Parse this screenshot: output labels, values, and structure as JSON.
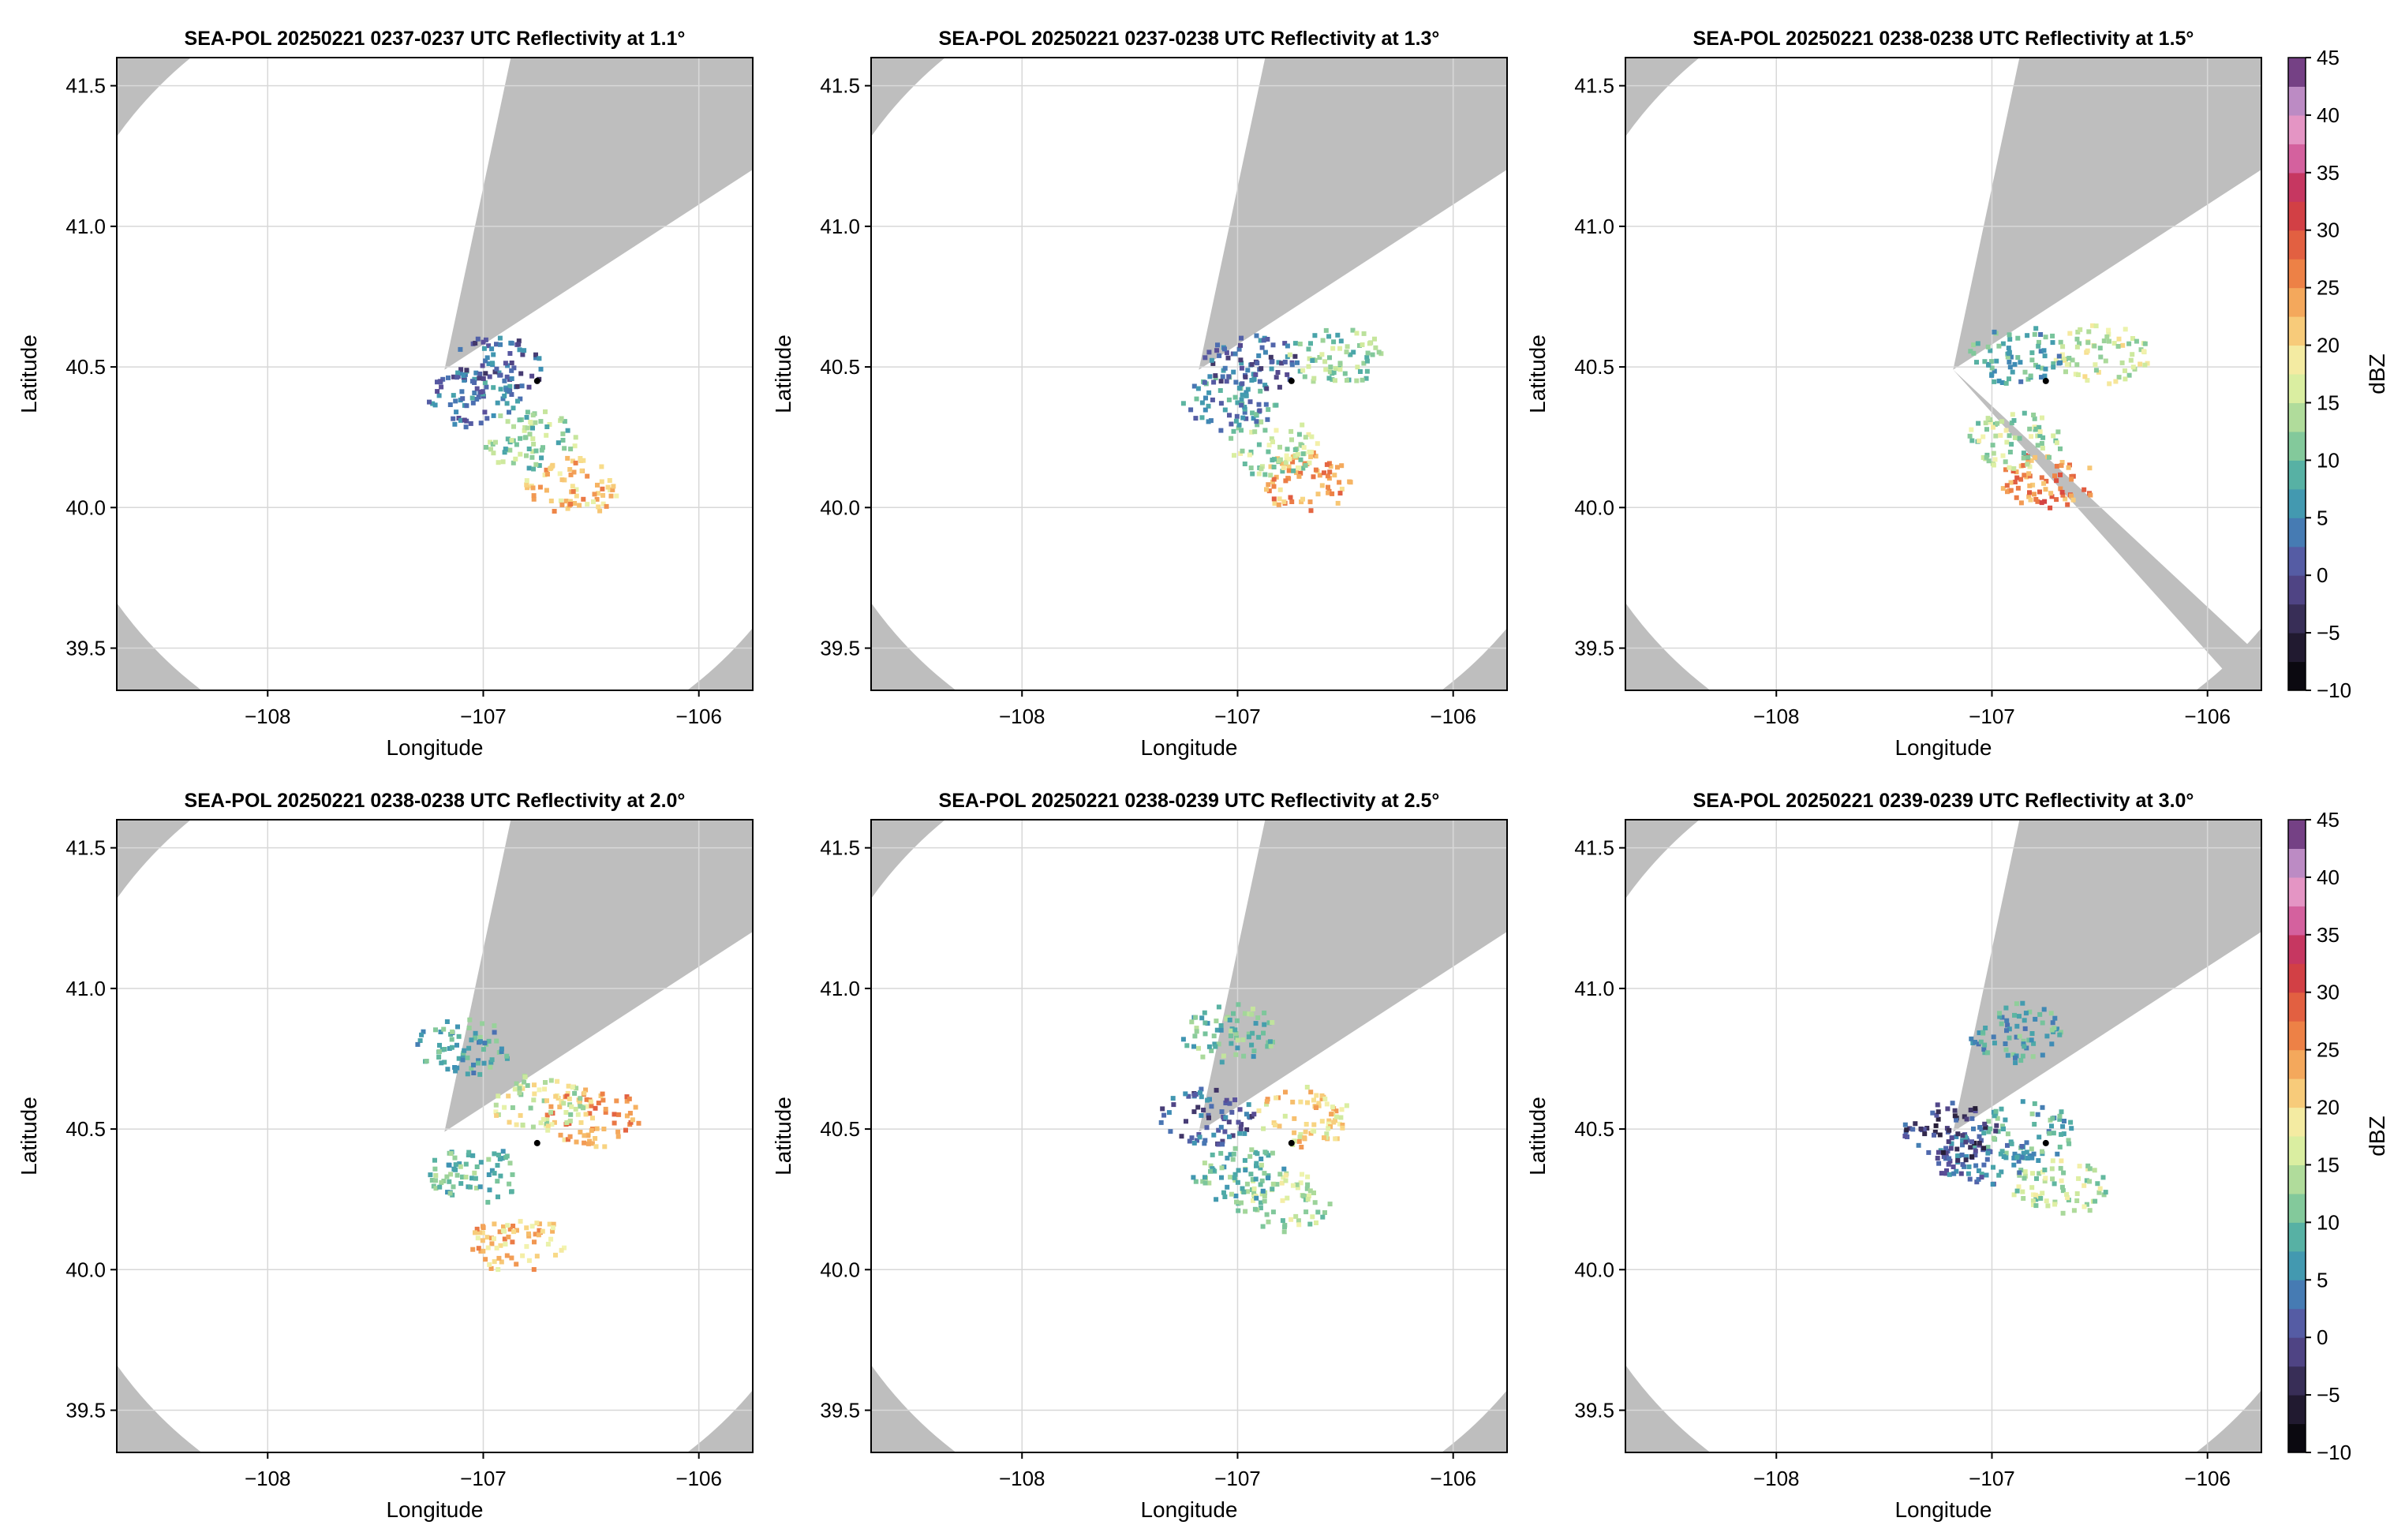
{
  "figure": {
    "colorbar_label": "dBZ",
    "colorbar_ticks": [
      "45",
      "40",
      "35",
      "30",
      "25",
      "20",
      "15",
      "10",
      "5",
      "0",
      "−5",
      "−10"
    ],
    "colors": {
      "masked": "#bebebe",
      "coverage": "#ffffff",
      "grid": "#d8d8d8",
      "radar_marker": "#000000"
    }
  },
  "chart_data": [
    {
      "type": "heatmap",
      "title": "SEA-POL 20250221 0237-0237 UTC Reflectivity at 1.1°",
      "xlabel": "Longitude",
      "ylabel": "Latitude",
      "xlim": [
        -108.7,
        -105.75
      ],
      "ylim": [
        39.35,
        41.6
      ],
      "xtick_labels": [
        "−108",
        "−107",
        "−106"
      ],
      "ytick_labels": [
        "39.5",
        "40.0",
        "40.5",
        "41.0",
        "41.5"
      ],
      "radar_location": {
        "lon": -107.18,
        "lat": 40.49
      },
      "marker_location": {
        "lon": -106.75,
        "lat": 40.45
      },
      "coverage_radius_deg": 1.43,
      "blocked_sectors_deg": [
        [
          12,
          57
        ]
      ],
      "echoes": [
        {
          "lon": -106.6,
          "lat": 40.08,
          "value": 22
        },
        {
          "lon": -106.8,
          "lat": 40.25,
          "value": 12
        },
        {
          "lon": -107.05,
          "lat": 40.4,
          "value": 4
        },
        {
          "lon": -106.95,
          "lat": 40.51,
          "value": 2
        }
      ]
    },
    {
      "type": "heatmap",
      "title": "SEA-POL 20250221 0237-0238 UTC Reflectivity at 1.3°",
      "xlabel": "Longitude",
      "ylabel": "Latitude",
      "xlim": [
        -108.7,
        -105.75
      ],
      "ylim": [
        39.35,
        41.6
      ],
      "xtick_labels": [
        "−108",
        "−107",
        "−106"
      ],
      "ytick_labels": [
        "39.5",
        "40.0",
        "40.5",
        "41.0",
        "41.5"
      ],
      "radar_location": {
        "lon": -107.18,
        "lat": 40.49
      },
      "marker_location": {
        "lon": -106.75,
        "lat": 40.45
      },
      "coverage_radius_deg": 1.43,
      "blocked_sectors_deg": [
        [
          12,
          57
        ]
      ],
      "echoes": [
        {
          "lon": -106.7,
          "lat": 40.1,
          "value": 24
        },
        {
          "lon": -106.85,
          "lat": 40.22,
          "value": 14
        },
        {
          "lon": -107.05,
          "lat": 40.38,
          "value": 6
        },
        {
          "lon": -106.95,
          "lat": 40.52,
          "value": 2
        },
        {
          "lon": -106.55,
          "lat": 40.55,
          "value": 12
        }
      ]
    },
    {
      "type": "heatmap",
      "title": "SEA-POL 20250221 0238-0238 UTC Reflectivity at 1.5°",
      "xlabel": "Longitude",
      "ylabel": "Latitude",
      "xlim": [
        -108.7,
        -105.75
      ],
      "ylim": [
        39.35,
        41.6
      ],
      "xtick_labels": [
        "−108",
        "−107",
        "−106"
      ],
      "ytick_labels": [
        "39.5",
        "40.0",
        "40.5",
        "41.0",
        "41.5"
      ],
      "radar_location": {
        "lon": -107.18,
        "lat": 40.49
      },
      "marker_location": {
        "lon": -106.75,
        "lat": 40.45
      },
      "coverage_radius_deg": 1.43,
      "blocked_sectors_deg": [
        [
          12,
          57
        ],
        [
          133,
          138
        ]
      ],
      "echoes": [
        {
          "lon": -106.75,
          "lat": 40.1,
          "value": 26
        },
        {
          "lon": -106.9,
          "lat": 40.25,
          "value": 14
        },
        {
          "lon": -106.5,
          "lat": 40.55,
          "value": 16
        },
        {
          "lon": -106.9,
          "lat": 40.55,
          "value": 8
        }
      ]
    },
    {
      "type": "heatmap",
      "title": "SEA-POL 20250221 0238-0238 UTC Reflectivity at 2.0°",
      "xlabel": "Longitude",
      "ylabel": "Latitude",
      "xlim": [
        -108.7,
        -105.75
      ],
      "ylim": [
        39.35,
        41.6
      ],
      "xtick_labels": [
        "−108",
        "−107",
        "−106"
      ],
      "ytick_labels": [
        "39.5",
        "40.0",
        "40.5",
        "41.0",
        "41.5"
      ],
      "radar_location": {
        "lon": -107.18,
        "lat": 40.49
      },
      "marker_location": {
        "lon": -106.75,
        "lat": 40.45
      },
      "coverage_radius_deg": 1.43,
      "blocked_sectors_deg": [
        [
          12,
          57
        ]
      ],
      "echoes": [
        {
          "lon": -106.85,
          "lat": 40.1,
          "value": 22
        },
        {
          "lon": -106.5,
          "lat": 40.55,
          "value": 24
        },
        {
          "lon": -106.75,
          "lat": 40.6,
          "value": 16
        },
        {
          "lon": -107.05,
          "lat": 40.35,
          "value": 10
        },
        {
          "lon": -107.1,
          "lat": 40.8,
          "value": 8
        }
      ]
    },
    {
      "type": "heatmap",
      "title": "SEA-POL 20250221 0238-0239 UTC Reflectivity at 2.5°",
      "xlabel": "Longitude",
      "ylabel": "Latitude",
      "xlim": [
        -108.7,
        -105.75
      ],
      "ylim": [
        39.35,
        41.6
      ],
      "xtick_labels": [
        "−108",
        "−107",
        "−106"
      ],
      "ytick_labels": [
        "39.5",
        "40.0",
        "40.5",
        "41.0",
        "41.5"
      ],
      "radar_location": {
        "lon": -107.18,
        "lat": 40.49
      },
      "marker_location": {
        "lon": -106.75,
        "lat": 40.45
      },
      "coverage_radius_deg": 1.43,
      "blocked_sectors_deg": [
        [
          12,
          57
        ]
      ],
      "echoes": [
        {
          "lon": -106.7,
          "lat": 40.55,
          "value": 20
        },
        {
          "lon": -106.8,
          "lat": 40.25,
          "value": 14
        },
        {
          "lon": -107.0,
          "lat": 40.35,
          "value": 10
        },
        {
          "lon": -107.15,
          "lat": 40.55,
          "value": 2
        },
        {
          "lon": -107.05,
          "lat": 40.85,
          "value": 10
        }
      ]
    },
    {
      "type": "heatmap",
      "title": "SEA-POL 20250221 0239-0239 UTC Reflectivity at 3.0°",
      "xlabel": "Longitude",
      "ylabel": "Latitude",
      "xlim": [
        -108.7,
        -105.75
      ],
      "ylim": [
        39.35,
        41.6
      ],
      "xtick_labels": [
        "−108",
        "−107",
        "−106"
      ],
      "ytick_labels": [
        "39.5",
        "40.0",
        "40.5",
        "41.0",
        "41.5"
      ],
      "radar_location": {
        "lon": -107.18,
        "lat": 40.49
      },
      "marker_location": {
        "lon": -106.75,
        "lat": 40.45
      },
      "coverage_radius_deg": 1.43,
      "blocked_sectors_deg": [
        [
          12,
          57
        ]
      ],
      "echoes": [
        {
          "lon": -106.7,
          "lat": 40.3,
          "value": 14
        },
        {
          "lon": -106.85,
          "lat": 40.5,
          "value": 8
        },
        {
          "lon": -107.05,
          "lat": 40.4,
          "value": 4
        },
        {
          "lon": -107.2,
          "lat": 40.5,
          "value": -1
        },
        {
          "lon": -106.9,
          "lat": 40.85,
          "value": 8
        }
      ]
    }
  ]
}
